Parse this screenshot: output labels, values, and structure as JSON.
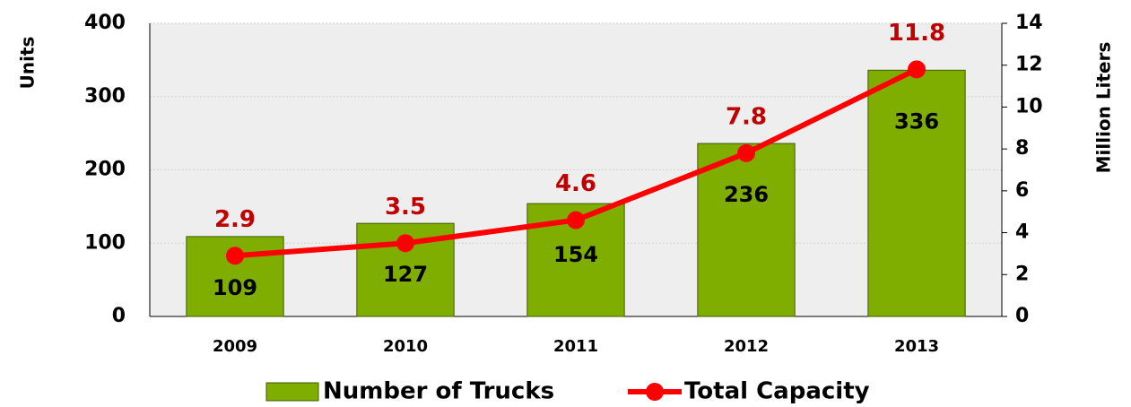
{
  "chart_data": {
    "type": "combo",
    "categories": [
      "2009",
      "2010",
      "2011",
      "2012",
      "2013"
    ],
    "series": [
      {
        "name": "Number of Trucks",
        "type": "bar",
        "color": "#7fae00",
        "values": [
          109,
          127,
          154,
          236,
          336
        ]
      },
      {
        "name": "Total Capacity",
        "type": "line",
        "axis": "y2",
        "color": "#ff0000",
        "values": [
          2.9,
          3.5,
          4.6,
          7.8,
          11.8
        ]
      }
    ],
    "ylabel": "Units",
    "y2label": "Million Liters",
    "ylim": [
      0,
      400
    ],
    "yticks": [
      0,
      100,
      200,
      300,
      400
    ],
    "y2lim": [
      0,
      14
    ],
    "y2ticks": [
      0,
      2,
      4,
      6,
      8,
      10,
      12,
      14
    ],
    "legend": "bottom"
  }
}
